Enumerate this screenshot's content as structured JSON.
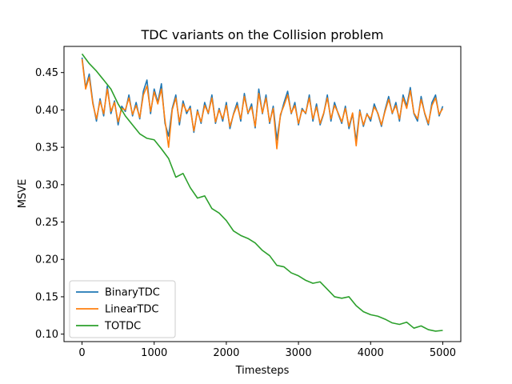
{
  "chart_data": {
    "type": "line",
    "title": "TDC variants on the Collision problem",
    "xlabel": "Timesteps",
    "ylabel": "MSVE",
    "xlim": [
      -250,
      5250
    ],
    "ylim": [
      0.09,
      0.485
    ],
    "xticks": [
      0,
      1000,
      2000,
      3000,
      4000,
      5000
    ],
    "xtick_labels": [
      "0",
      "1000",
      "2000",
      "3000",
      "4000",
      "5000"
    ],
    "yticks": [
      0.1,
      0.15,
      0.2,
      0.25,
      0.3,
      0.35,
      0.4,
      0.45
    ],
    "ytick_labels": [
      "0.10",
      "0.15",
      "0.20",
      "0.25",
      "0.30",
      "0.35",
      "0.40",
      "0.45"
    ],
    "grid": false,
    "legend_position": "lower-left",
    "series": [
      {
        "name": "BinaryTDC",
        "color": "#1f77b4",
        "x": [
          0,
          50,
          100,
          150,
          200,
          250,
          300,
          350,
          400,
          450,
          500,
          550,
          600,
          650,
          700,
          750,
          800,
          850,
          900,
          950,
          1000,
          1050,
          1100,
          1150,
          1200,
          1250,
          1300,
          1350,
          1400,
          1450,
          1500,
          1550,
          1600,
          1650,
          1700,
          1750,
          1800,
          1850,
          1900,
          1950,
          2000,
          2050,
          2100,
          2150,
          2200,
          2250,
          2300,
          2350,
          2400,
          2450,
          2500,
          2550,
          2600,
          2650,
          2700,
          2750,
          2800,
          2850,
          2900,
          2950,
          3000,
          3050,
          3100,
          3150,
          3200,
          3250,
          3300,
          3350,
          3400,
          3450,
          3500,
          3550,
          3600,
          3650,
          3700,
          3750,
          3800,
          3850,
          3900,
          3950,
          4000,
          4050,
          4100,
          4150,
          4200,
          4250,
          4300,
          4350,
          4400,
          4450,
          4500,
          4550,
          4600,
          4650,
          4700,
          4750,
          4800,
          4850,
          4900,
          4950,
          5000
        ],
        "values": [
          0.47,
          0.43,
          0.448,
          0.41,
          0.385,
          0.415,
          0.392,
          0.432,
          0.395,
          0.412,
          0.38,
          0.405,
          0.398,
          0.42,
          0.392,
          0.41,
          0.388,
          0.425,
          0.44,
          0.395,
          0.428,
          0.41,
          0.435,
          0.382,
          0.365,
          0.402,
          0.42,
          0.38,
          0.412,
          0.395,
          0.405,
          0.37,
          0.4,
          0.382,
          0.41,
          0.395,
          0.42,
          0.382,
          0.402,
          0.385,
          0.41,
          0.375,
          0.395,
          0.41,
          0.385,
          0.422,
          0.395,
          0.408,
          0.376,
          0.428,
          0.395,
          0.42,
          0.382,
          0.405,
          0.36,
          0.392,
          0.41,
          0.425,
          0.395,
          0.41,
          0.38,
          0.402,
          0.395,
          0.42,
          0.385,
          0.408,
          0.38,
          0.395,
          0.42,
          0.385,
          0.41,
          0.395,
          0.382,
          0.405,
          0.375,
          0.395,
          0.358,
          0.4,
          0.378,
          0.395,
          0.385,
          0.408,
          0.395,
          0.378,
          0.4,
          0.418,
          0.395,
          0.41,
          0.385,
          0.42,
          0.405,
          0.43,
          0.395,
          0.385,
          0.418,
          0.395,
          0.38,
          0.41,
          0.42,
          0.392,
          0.405
        ]
      },
      {
        "name": "LinearTDC",
        "color": "#ff7f0e",
        "x": [
          0,
          50,
          100,
          150,
          200,
          250,
          300,
          350,
          400,
          450,
          500,
          550,
          600,
          650,
          700,
          750,
          800,
          850,
          900,
          950,
          1000,
          1050,
          1100,
          1150,
          1200,
          1250,
          1300,
          1350,
          1400,
          1450,
          1500,
          1550,
          1600,
          1650,
          1700,
          1750,
          1800,
          1850,
          1900,
          1950,
          2000,
          2050,
          2100,
          2150,
          2200,
          2250,
          2300,
          2350,
          2400,
          2450,
          2500,
          2550,
          2600,
          2650,
          2700,
          2750,
          2800,
          2850,
          2900,
          2950,
          3000,
          3050,
          3100,
          3150,
          3200,
          3250,
          3300,
          3350,
          3400,
          3450,
          3500,
          3550,
          3600,
          3650,
          3700,
          3750,
          3800,
          3850,
          3900,
          3950,
          4000,
          4050,
          4100,
          4150,
          4200,
          4250,
          4300,
          4350,
          4400,
          4450,
          4500,
          4550,
          4600,
          4650,
          4700,
          4750,
          4800,
          4850,
          4900,
          4950,
          5000
        ],
        "values": [
          0.468,
          0.428,
          0.444,
          0.408,
          0.388,
          0.412,
          0.395,
          0.428,
          0.398,
          0.41,
          0.384,
          0.402,
          0.4,
          0.416,
          0.394,
          0.406,
          0.39,
          0.42,
          0.432,
          0.398,
          0.424,
          0.408,
          0.428,
          0.386,
          0.35,
          0.4,
          0.416,
          0.384,
          0.408,
          0.398,
          0.402,
          0.372,
          0.398,
          0.384,
          0.406,
          0.396,
          0.416,
          0.384,
          0.4,
          0.388,
          0.406,
          0.378,
          0.394,
          0.406,
          0.388,
          0.418,
          0.396,
          0.404,
          0.378,
          0.422,
          0.396,
          0.416,
          0.384,
          0.402,
          0.348,
          0.394,
          0.406,
          0.42,
          0.396,
          0.406,
          0.382,
          0.4,
          0.396,
          0.416,
          0.388,
          0.404,
          0.382,
          0.396,
          0.416,
          0.388,
          0.406,
          0.396,
          0.384,
          0.402,
          0.378,
          0.396,
          0.352,
          0.398,
          0.38,
          0.394,
          0.388,
          0.404,
          0.396,
          0.38,
          0.398,
          0.414,
          0.396,
          0.406,
          0.388,
          0.416,
          0.402,
          0.426,
          0.396,
          0.388,
          0.414,
          0.396,
          0.382,
          0.406,
          0.416,
          0.394,
          0.402
        ]
      },
      {
        "name": "TOTDC",
        "color": "#2ca02c",
        "x": [
          0,
          100,
          200,
          300,
          400,
          500,
          600,
          700,
          800,
          900,
          1000,
          1100,
          1200,
          1300,
          1400,
          1500,
          1600,
          1700,
          1800,
          1900,
          2000,
          2100,
          2200,
          2300,
          2400,
          2500,
          2600,
          2700,
          2800,
          2900,
          3000,
          3100,
          3200,
          3300,
          3400,
          3500,
          3600,
          3700,
          3800,
          3900,
          4000,
          4100,
          4200,
          4300,
          4400,
          4500,
          4600,
          4700,
          4800,
          4900,
          5000
        ],
        "values": [
          0.475,
          0.462,
          0.452,
          0.44,
          0.428,
          0.408,
          0.392,
          0.38,
          0.368,
          0.362,
          0.36,
          0.348,
          0.335,
          0.31,
          0.315,
          0.296,
          0.282,
          0.285,
          0.268,
          0.262,
          0.252,
          0.238,
          0.232,
          0.228,
          0.222,
          0.212,
          0.205,
          0.192,
          0.19,
          0.182,
          0.178,
          0.172,
          0.168,
          0.17,
          0.16,
          0.15,
          0.148,
          0.15,
          0.138,
          0.13,
          0.126,
          0.124,
          0.12,
          0.115,
          0.113,
          0.116,
          0.108,
          0.111,
          0.106,
          0.104,
          0.105
        ]
      }
    ]
  }
}
